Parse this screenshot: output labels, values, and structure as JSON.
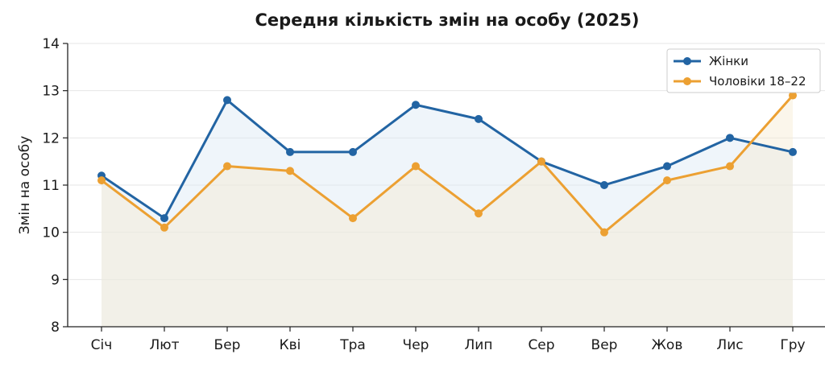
{
  "chart_data": {
    "type": "line",
    "title": "Середня кількість змін на особу (2025)",
    "xlabel": "",
    "ylabel": "Змін на особу",
    "ylim": [
      8,
      14
    ],
    "yticks": [
      8,
      9,
      10,
      11,
      12,
      13,
      14
    ],
    "grid": true,
    "legend_position": "top-right",
    "categories": [
      "Січ",
      "Лют",
      "Бер",
      "Кві",
      "Тра",
      "Чер",
      "Лип",
      "Сер",
      "Вер",
      "Жов",
      "Лис",
      "Гру"
    ],
    "series": [
      {
        "name": "Жінки",
        "color": "#2264a3",
        "fill": "#dce8f3",
        "values": [
          11.2,
          10.3,
          12.8,
          11.7,
          11.7,
          12.7,
          12.4,
          11.5,
          11.0,
          11.4,
          12.0,
          11.7
        ]
      },
      {
        "name": "Чоловіки 18–22",
        "color": "#eca032",
        "fill": "#f6ead3",
        "values": [
          11.1,
          10.1,
          11.4,
          11.3,
          10.3,
          11.4,
          10.4,
          11.5,
          10.0,
          11.1,
          11.4,
          12.9
        ]
      }
    ]
  }
}
